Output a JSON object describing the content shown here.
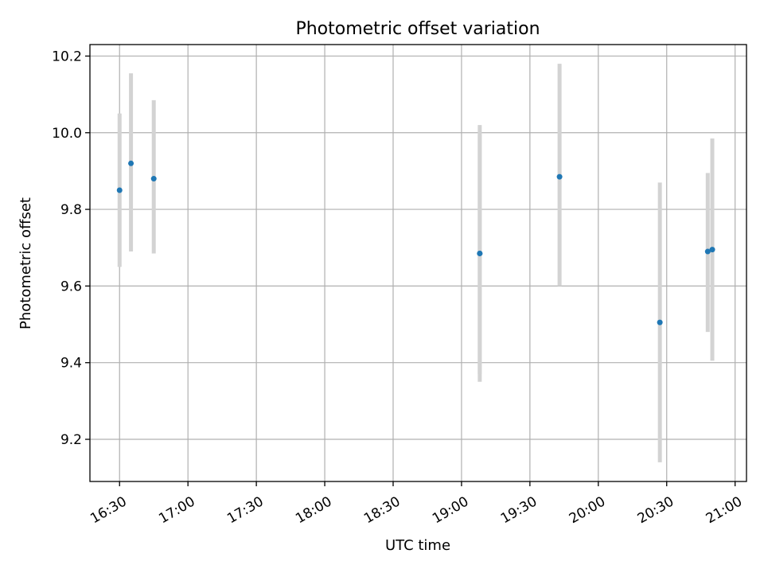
{
  "chart_data": {
    "type": "scatter",
    "title": "Photometric offset variation",
    "xlabel": "UTC time",
    "ylabel": "Photometric offset",
    "x_unit": "time",
    "xlim": [
      "16:17",
      "21:05"
    ],
    "ylim": [
      9.09,
      10.23
    ],
    "x_ticks": [
      "16:30",
      "17:00",
      "17:30",
      "18:00",
      "18:30",
      "19:00",
      "19:30",
      "20:00",
      "20:30",
      "21:00"
    ],
    "y_ticks": [
      "9.2",
      "9.4",
      "9.6",
      "9.8",
      "10.0",
      "10.2"
    ],
    "grid": true,
    "points": [
      {
        "x": "16:30",
        "y": 9.85,
        "err_low": 9.65,
        "err_high": 10.05
      },
      {
        "x": "16:35",
        "y": 9.92,
        "err_low": 9.69,
        "err_high": 10.155
      },
      {
        "x": "16:45",
        "y": 9.88,
        "err_low": 9.685,
        "err_high": 10.085
      },
      {
        "x": "19:08",
        "y": 9.685,
        "err_low": 9.35,
        "err_high": 10.02
      },
      {
        "x": "19:08",
        "y": 9.685,
        "err_low": 9.37,
        "err_high": 9.995
      },
      {
        "x": "19:43",
        "y": 9.885,
        "err_low": 9.6,
        "err_high": 10.18
      },
      {
        "x": "20:27",
        "y": 9.505,
        "err_low": 9.14,
        "err_high": 9.87
      },
      {
        "x": "20:48",
        "y": 9.69,
        "err_low": 9.48,
        "err_high": 9.895
      },
      {
        "x": "20:50",
        "y": 9.695,
        "err_low": 9.405,
        "err_high": 9.985
      }
    ],
    "colors": {
      "points": "#1f77b4",
      "errorbars": "#d3d3d3",
      "grid": "#b0b0b0"
    }
  }
}
